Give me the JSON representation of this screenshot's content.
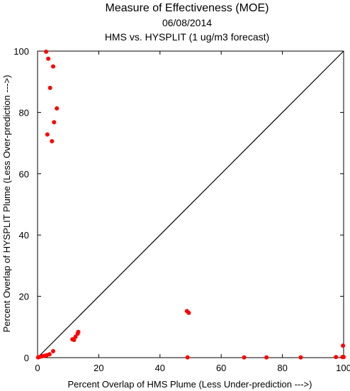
{
  "chart_data": {
    "type": "scatter",
    "title": "Measure of Effectiveness (MOE)",
    "subtitle": "06/08/2014",
    "subtitle2": "HMS vs. HYSPLIT  (1 ug/m3 forecast)",
    "xlabel": "Percent Overlap of HMS Plume (Less Under-prediction --->)",
    "ylabel": "Percent Overlap of HYSPLIT Plume (Less Over-prediction --->)",
    "xlim": [
      0,
      100
    ],
    "ylim": [
      0,
      100
    ],
    "xticks": [
      0,
      20,
      40,
      60,
      80,
      100
    ],
    "yticks": [
      0,
      20,
      40,
      60,
      80,
      100
    ],
    "grid": false,
    "reference_line": "y = x diagonal",
    "point_color": "#ff0000",
    "series": [
      {
        "points": [
          [
            2.8,
            99.8
          ],
          [
            3.5,
            97.5
          ],
          [
            5.1,
            95.0
          ],
          [
            4.1,
            88.0
          ],
          [
            6.3,
            81.3
          ],
          [
            5.4,
            76.8
          ],
          [
            3.2,
            72.8
          ],
          [
            4.7,
            70.6
          ],
          [
            0.2,
            0.1
          ],
          [
            0.8,
            0.3
          ],
          [
            1.5,
            0.5
          ],
          [
            2.3,
            0.6
          ],
          [
            3.0,
            0.8
          ],
          [
            3.9,
            1.1
          ],
          [
            5.1,
            2.1
          ],
          [
            11.4,
            6.0
          ],
          [
            11.9,
            5.8
          ],
          [
            12.4,
            6.8
          ],
          [
            13.1,
            7.8
          ],
          [
            13.3,
            8.4
          ],
          [
            48.8,
            15.2
          ],
          [
            49.4,
            14.6
          ],
          [
            49.0,
            0.1
          ],
          [
            67.5,
            0.1
          ],
          [
            74.8,
            0.1
          ],
          [
            86.0,
            0.1
          ],
          [
            97.5,
            0.2
          ],
          [
            99.6,
            0.2
          ],
          [
            100.0,
            0.2
          ],
          [
            99.8,
            3.9
          ]
        ]
      }
    ]
  }
}
